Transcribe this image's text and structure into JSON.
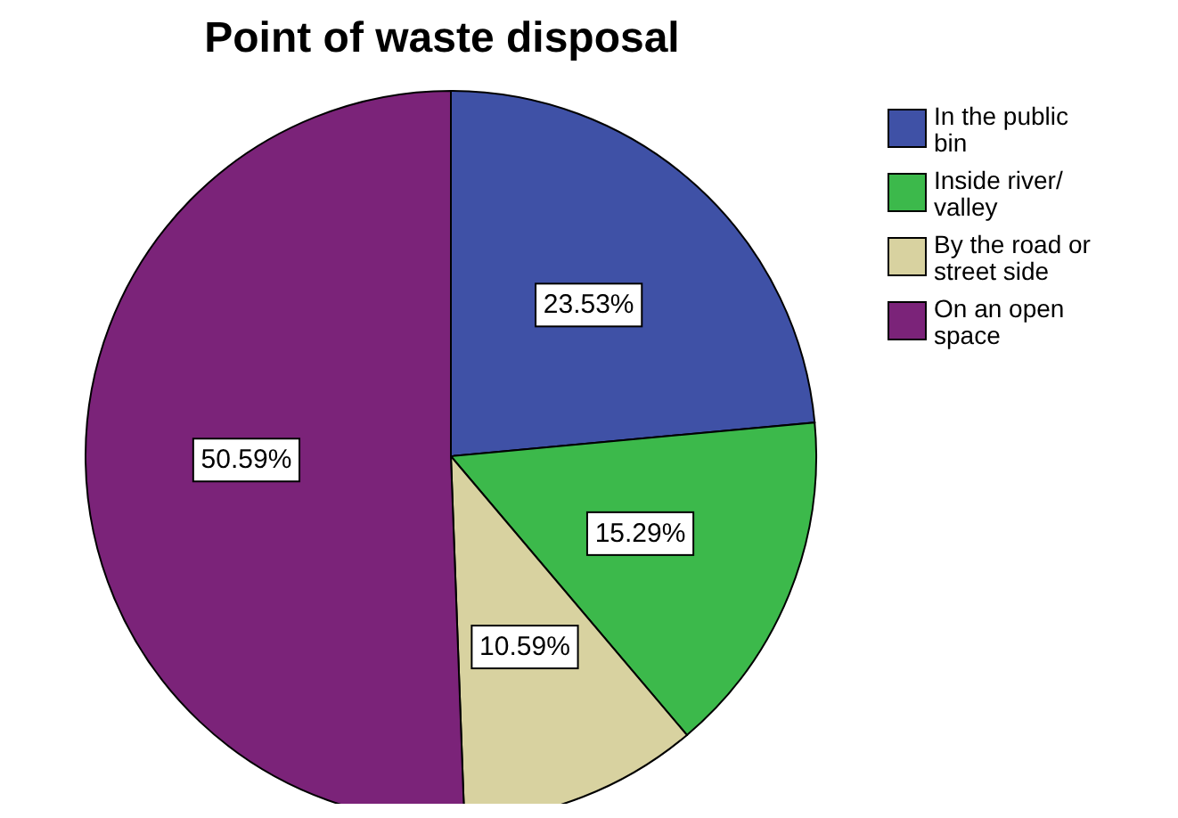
{
  "chart_data": {
    "type": "pie",
    "title": "Point of waste disposal",
    "categories": [
      "In the public bin",
      "Inside river/ valley",
      "By the road or street side",
      "On an open space"
    ],
    "values": [
      23.53,
      15.29,
      10.59,
      50.59
    ],
    "colors": [
      "#3f51a6",
      "#3cb94b",
      "#d8d2a0",
      "#7b2379"
    ],
    "value_labels": [
      "23.53%",
      "15.29%",
      "10.59%",
      "50.59%"
    ],
    "legend": "right"
  }
}
